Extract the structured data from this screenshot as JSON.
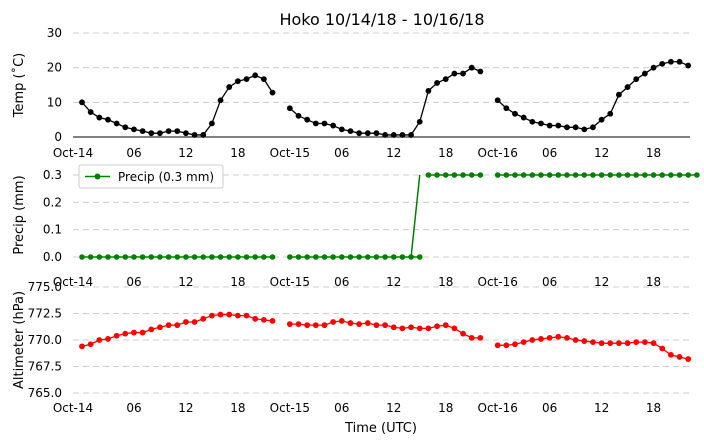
{
  "chart_data": [
    {
      "type": "line",
      "title": "Hoko 10/14/18 - 10/16/18",
      "xlabel": "",
      "ylabel": "Temp (˚C)",
      "ylim": [
        0,
        30
      ],
      "yticks": [
        "0",
        "10",
        "20",
        "30"
      ],
      "xlim": [
        0,
        71
      ],
      "xticks": [
        {
          "hour": 0,
          "label": "Oct-14"
        },
        {
          "hour": 6,
          "label": "06"
        },
        {
          "hour": 12,
          "label": "12"
        },
        {
          "hour": 18,
          "label": "18"
        },
        {
          "hour": 24,
          "label": "Oct-15"
        },
        {
          "hour": 30,
          "label": "06"
        },
        {
          "hour": 36,
          "label": "12"
        },
        {
          "hour": 42,
          "label": "18"
        },
        {
          "hour": 48,
          "label": "Oct-16"
        },
        {
          "hour": 54,
          "label": "06"
        },
        {
          "hour": 60,
          "label": "12"
        },
        {
          "hour": 66,
          "label": "18"
        }
      ],
      "color": "#000000",
      "grid": "horizontal dashed",
      "x_hours": [
        0,
        1,
        2,
        3,
        4,
        5,
        6,
        7,
        8,
        9,
        10,
        11,
        12,
        13,
        14,
        15,
        16,
        17,
        18,
        19,
        20,
        21,
        22,
        23,
        24,
        25,
        26,
        27,
        28,
        29,
        30,
        31,
        32,
        33,
        34,
        35,
        36,
        37,
        38,
        39,
        40,
        41,
        42,
        43,
        44,
        45,
        46,
        47,
        48,
        49,
        50,
        51,
        52,
        53,
        54,
        55,
        56,
        57,
        58,
        59,
        60,
        61,
        62,
        63,
        64,
        65,
        66,
        67,
        68,
        69,
        70,
        71
      ],
      "values": [
        10,
        7.2,
        5.6,
        5,
        3.9,
        2.8,
        2.2,
        1.7,
        1.1,
        1.1,
        1.7,
        1.7,
        1.1,
        0.6,
        0.6,
        3.9,
        10.6,
        14.4,
        16.1,
        16.7,
        17.8,
        16.7,
        12.8,
        null,
        8.3,
        6.1,
        5,
        3.9,
        3.9,
        3.3,
        2.2,
        1.7,
        1.1,
        1.1,
        1.1,
        0.6,
        0.6,
        0.6,
        0.6,
        4.4,
        13.3,
        15.6,
        16.7,
        18.3,
        18.3,
        20,
        18.9,
        null,
        10.6,
        8.3,
        6.7,
        5.6,
        4.4,
        3.9,
        3.3,
        3.3,
        2.8,
        2.8,
        2.2,
        2.8,
        5,
        6.7,
        12.2,
        14.4,
        16.7,
        18.3,
        20,
        21.1,
        21.7,
        21.7,
        20.6,
        null
      ]
    },
    {
      "type": "line",
      "xlabel": "",
      "ylabel": "Precip (mm)",
      "ylim": [
        -0.02,
        0.33
      ],
      "yticks": [
        "0.0",
        "0.1",
        "0.2",
        "0.3"
      ],
      "color": "#008000",
      "legend": {
        "label": "Precip (0.3 mm)",
        "position": "top-left"
      },
      "grid": "horizontal dashed",
      "segments": [
        {
          "from_hour": 0,
          "to_hour": 22,
          "value": 0.0
        },
        {
          "from_hour": 24,
          "to_hour": 39,
          "value": 0.0
        },
        {
          "from_hour": 40,
          "to_hour": 46,
          "value": 0.3
        },
        {
          "from_hour": 48,
          "to_hour": 71,
          "value": 0.3
        }
      ],
      "step": {
        "hour": 39,
        "value": 0.3
      }
    },
    {
      "type": "line",
      "xlabel": "Time (UTC)",
      "ylabel": "Altimeter (hPa)",
      "ylim": [
        765.0,
        775.0
      ],
      "yticks": [
        "765.0",
        "767.5",
        "770.0",
        "772.5",
        "775.0"
      ],
      "color": "#ff0000",
      "grid": "horizontal dashed",
      "values": [
        769.4,
        769.6,
        770.0,
        770.1,
        770.4,
        770.6,
        770.7,
        770.7,
        771.0,
        771.2,
        771.4,
        771.4,
        771.7,
        771.7,
        772.0,
        772.3,
        772.4,
        772.4,
        772.3,
        772.3,
        772.0,
        771.9,
        771.8,
        null,
        771.5,
        771.5,
        771.4,
        771.4,
        771.4,
        771.7,
        771.8,
        771.6,
        771.5,
        771.6,
        771.4,
        771.4,
        771.2,
        771.1,
        771.2,
        771.1,
        771.1,
        771.3,
        771.4,
        771.1,
        770.6,
        770.2,
        770.2,
        null,
        769.5,
        769.5,
        769.6,
        769.8,
        770.0,
        770.1,
        770.2,
        770.3,
        770.2,
        770.0,
        769.9,
        769.8,
        769.7,
        769.7,
        769.7,
        769.7,
        769.8,
        769.8,
        769.7,
        769.2,
        768.6,
        768.4,
        768.2,
        null
      ]
    }
  ]
}
